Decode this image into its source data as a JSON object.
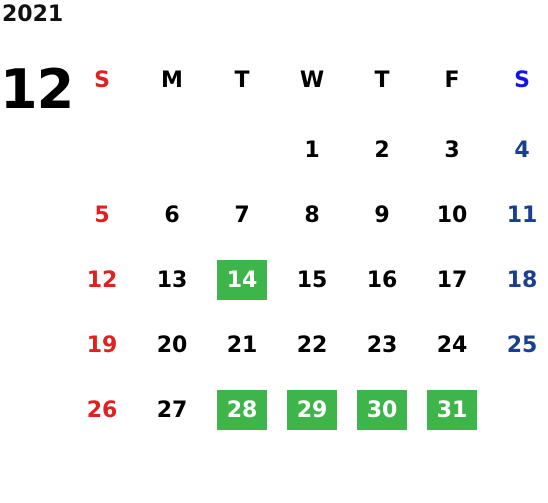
{
  "year": "2021",
  "month": "12",
  "weekdays": [
    "S",
    "M",
    "T",
    "W",
    "T",
    "F",
    "S"
  ],
  "weeks": [
    [
      "",
      "",
      "",
      "1",
      "2",
      "3",
      "4"
    ],
    [
      "5",
      "6",
      "7",
      "8",
      "9",
      "10",
      "11"
    ],
    [
      "12",
      "13",
      "14",
      "15",
      "16",
      "17",
      "18"
    ],
    [
      "19",
      "20",
      "21",
      "22",
      "23",
      "24",
      "25"
    ],
    [
      "26",
      "27",
      "28",
      "29",
      "30",
      "31",
      ""
    ]
  ],
  "highlighted_days": [
    "14",
    "28",
    "29",
    "30",
    "31"
  ],
  "colors": {
    "sunday": "#e0211f",
    "saturday_header": "#1414e6",
    "saturday": "#1a3f8f",
    "highlight": "#3db54a"
  }
}
